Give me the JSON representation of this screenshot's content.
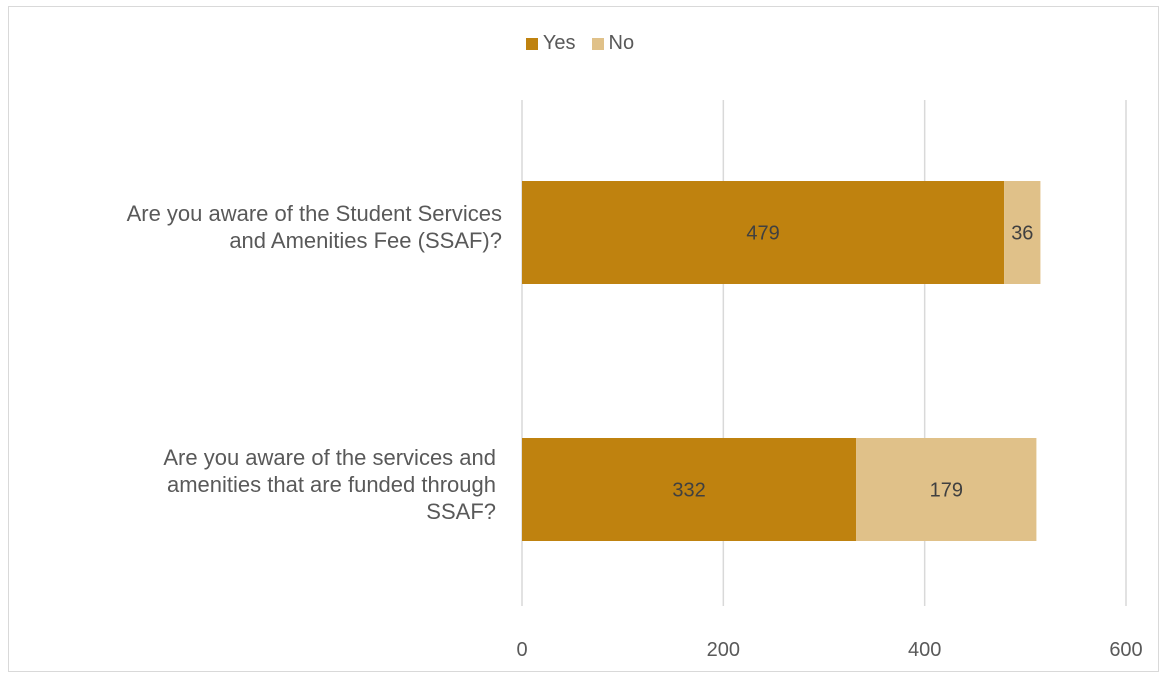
{
  "chart_data": {
    "type": "bar",
    "orientation": "horizontal",
    "stacked": true,
    "categories": [
      "Are you aware of the Student Services\nand Amenities Fee (SSAF)?",
      "Are you aware of the services and\namenities that are funded through\nSSAF?"
    ],
    "series": [
      {
        "name": "Yes",
        "values": [
          479,
          332
        ],
        "color": "#bf820f"
      },
      {
        "name": "No",
        "values": [
          36,
          179
        ],
        "color": "#e0c189"
      }
    ],
    "xlim": [
      0,
      600
    ],
    "xticks": [
      "0",
      "200",
      "400",
      "600"
    ],
    "grid": "vertical",
    "legend_position": "top"
  }
}
